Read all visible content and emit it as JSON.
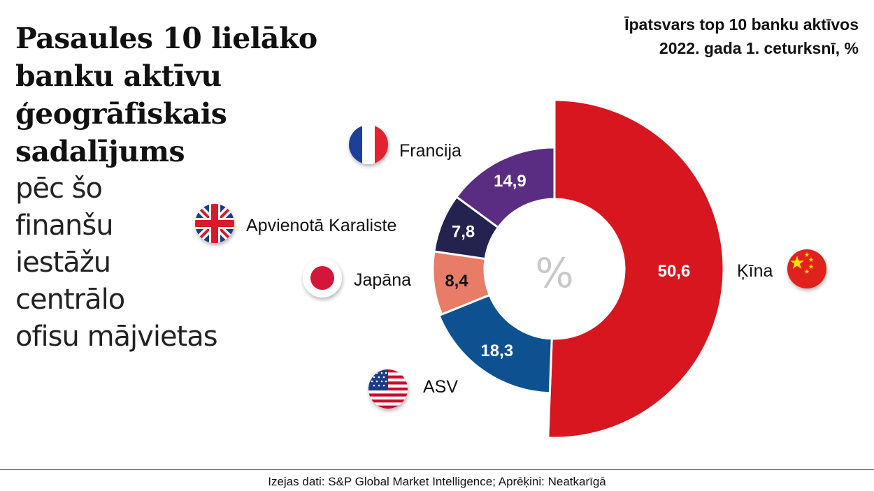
{
  "title": "Pasaules 10 lielāko\nbanku aktīvu\nģeogrāfiskais\nsadalījums",
  "subtitle": "pēc šo\nfinanšu\niestāžu\ncentrālo\nofisu mājvietas",
  "top_note": "Īpatsvars top 10 banku aktīvos\n2022. gada 1. ceturksnī, %",
  "center_symbol": "%",
  "source": "Izejas dati: S&P Global Market Intelligence; Aprēķini: Neatkarīgā",
  "chart_data": {
    "type": "donut",
    "unit": "%",
    "categories": [
      "Ķīna",
      "ASV",
      "Japāna",
      "Apvienotā Karaliste",
      "Francija"
    ],
    "values": [
      50.6,
      18.3,
      8.4,
      7.8,
      14.9
    ],
    "value_labels": [
      "50,6",
      "18,3",
      "8,4",
      "7,8",
      "14,9"
    ],
    "colors": [
      "#d7161f",
      "#0d5190",
      "#e97c67",
      "#24224f",
      "#5a2d83"
    ],
    "value_label_colors": [
      "#ffffff",
      "#ffffff",
      "#111111",
      "#ffffff",
      "#ffffff"
    ],
    "flag_icons": [
      "china-flag-icon",
      "usa-flag-icon",
      "japan-flag-icon",
      "uk-flag-icon",
      "france-flag-icon"
    ]
  }
}
